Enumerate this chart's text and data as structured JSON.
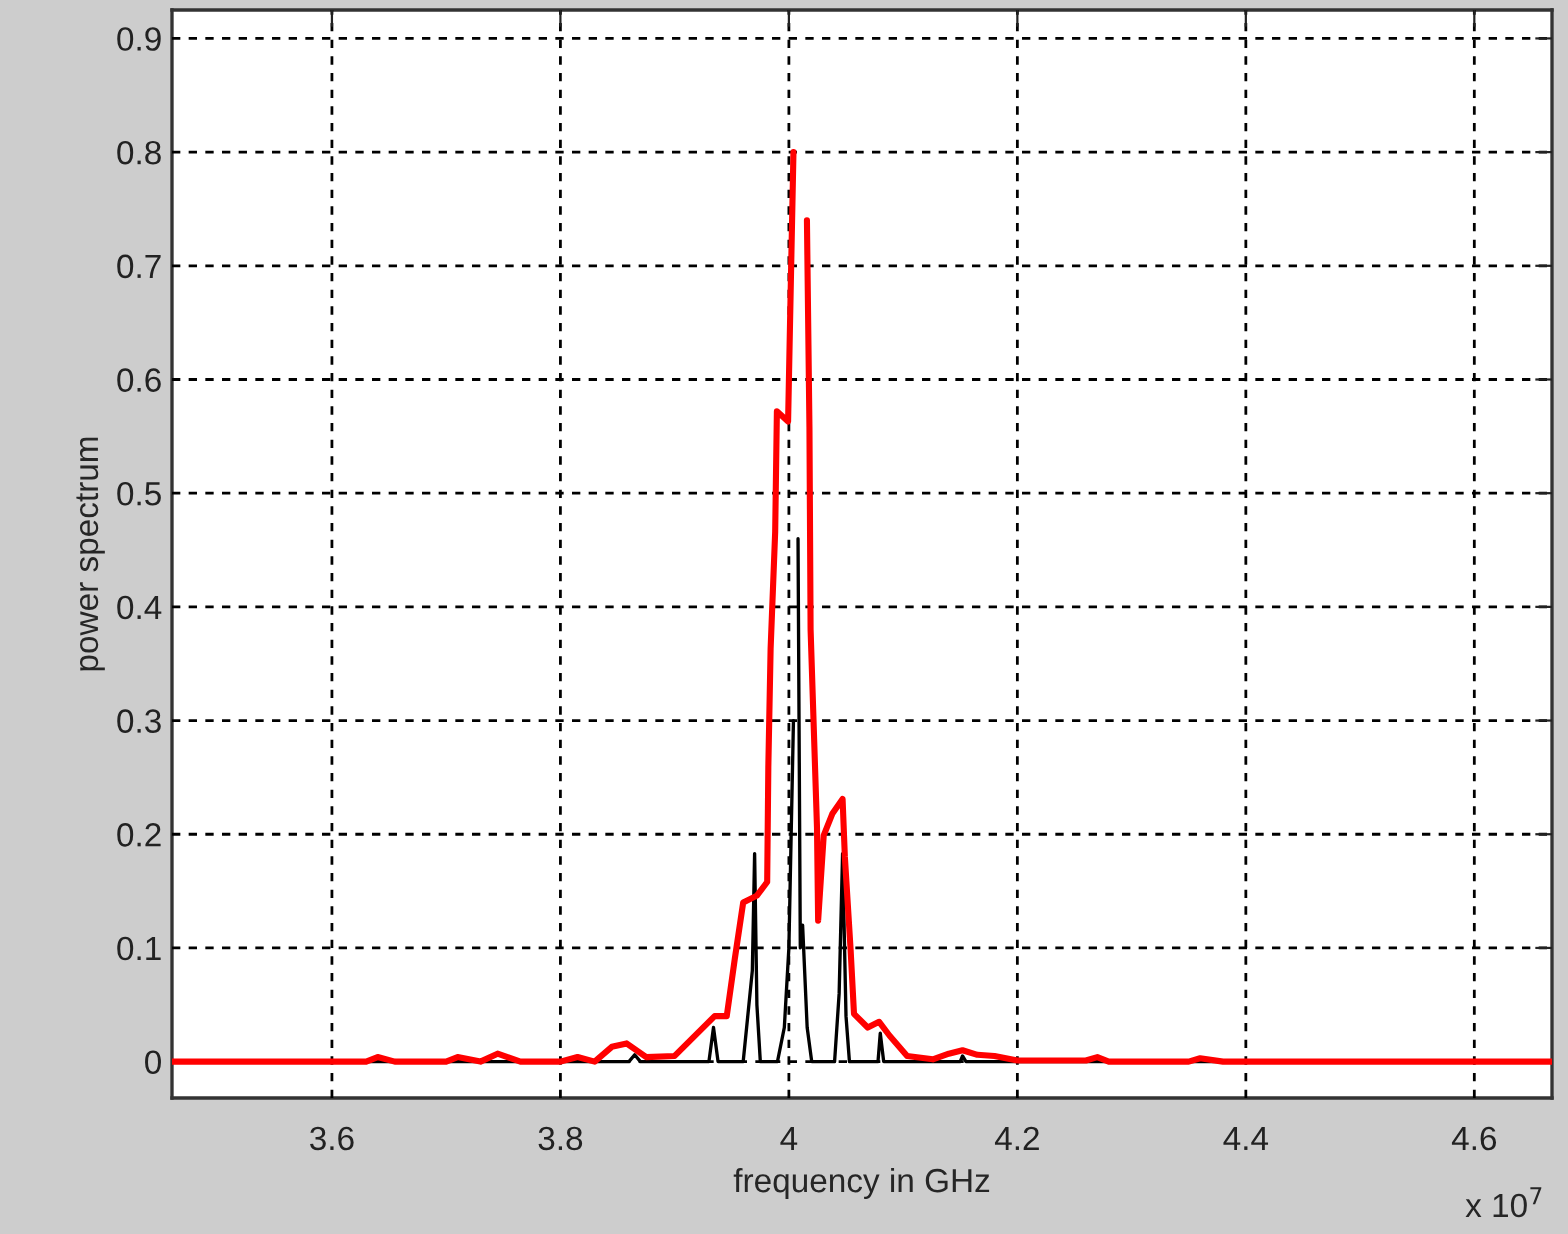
{
  "chart_data": {
    "type": "line",
    "xlabel": "frequency in GHz",
    "ylabel": "power spectrum",
    "annotations": [
      "x 10$^{7}$"
    ],
    "xlim": [
      3.46,
      4.668
    ],
    "xticks": [
      3.6,
      3.8,
      4,
      4.2,
      4.4,
      4.6
    ],
    "ylim": [
      -0.032,
      0.925
    ],
    "yticks": [
      0,
      0.1,
      0.2,
      0.3,
      0.4,
      0.5,
      0.6,
      0.7,
      0.8,
      0.9
    ],
    "grid": true,
    "marker": "none",
    "line_style": "solid",
    "series": [
      {
        "color": "#000000",
        "x": [
          3.46,
          3.86,
          3.865,
          3.87,
          3.93,
          3.934,
          3.938,
          3.96,
          3.968,
          3.97,
          3.972,
          3.975,
          3.99,
          3.996,
          4.0,
          4.004,
          4.006,
          4.008,
          4.01,
          4.012,
          4.016,
          4.02,
          4.04,
          4.044,
          4.047,
          4.05,
          4.053,
          4.078,
          4.08,
          4.083,
          4.15,
          4.152,
          4.155,
          4.668
        ],
        "values": [
          0,
          0,
          0.006,
          0,
          0,
          0.03,
          0,
          0,
          0.08,
          0.183,
          0.05,
          0,
          0,
          0.03,
          0.1,
          0.3,
          null,
          0.46,
          0.1,
          0.12,
          0.03,
          0,
          0,
          0.06,
          0.183,
          0.04,
          0,
          0,
          0.025,
          0,
          0,
          0.005,
          0,
          0
        ]
      },
      {
        "color": "#ff0000",
        "x": [
          3.46,
          3.63,
          3.64,
          3.655,
          3.7,
          3.71,
          3.73,
          3.745,
          3.765,
          3.8,
          3.815,
          3.83,
          3.845,
          3.858,
          3.875,
          3.9,
          3.935,
          3.9456,
          3.9526,
          3.96,
          3.972,
          3.981,
          3.982,
          3.984,
          3.988,
          3.9895,
          3.9993,
          4.0018,
          4.004,
          4.007,
          4.013,
          4.0158,
          4.018,
          4.019,
          4.0246,
          4.0256,
          4.0305,
          4.038,
          4.047,
          4.049,
          4.054,
          4.057,
          4.069,
          4.079,
          4.088,
          4.1035,
          4.126,
          4.14,
          4.152,
          4.165,
          4.18,
          4.2,
          4.26,
          4.27,
          4.28,
          4.35,
          4.36,
          4.38,
          4.668
        ],
        "values": [
          0,
          0,
          0.004,
          0,
          0,
          0.004,
          0,
          0.007,
          0,
          0,
          0.004,
          0,
          0.013,
          0.016,
          0.004,
          0.005,
          0.04,
          0.04,
          0.09,
          0.14,
          0.146,
          0.158,
          0.259,
          0.363,
          0.466,
          0.572,
          0.563,
          0.69,
          0.8,
          null,
          null,
          0.74,
          0.558,
          0.38,
          0.206,
          0.124,
          0.199,
          0.218,
          0.231,
          0.18,
          0.099,
          0.042,
          0.03,
          0.035,
          0.023,
          0.005,
          0.002,
          0.007,
          0.01,
          0.006,
          0.005,
          0.001,
          0.001,
          0.004,
          0,
          0,
          0.003,
          0,
          0
        ]
      }
    ]
  }
}
